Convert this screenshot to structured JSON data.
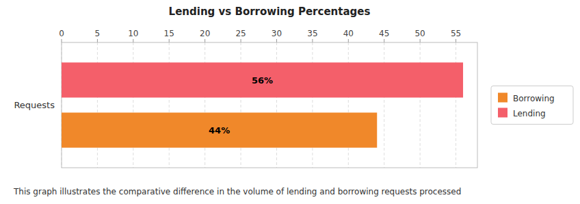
{
  "chart_data": {
    "type": "bar",
    "orientation": "horizontal",
    "title": "Lending vs Borrowing Percentages",
    "subtitle": "This graph illustrates the comparative difference in the volume of lending and borrowing requests processed",
    "categories": [
      "Requests"
    ],
    "series": [
      {
        "name": "Borrowing",
        "color": "#F0882A",
        "values": [
          44
        ],
        "value_labels": [
          "44%"
        ]
      },
      {
        "name": "Lending",
        "color": "#F45F6A",
        "values": [
          56
        ],
        "value_labels": [
          "56%"
        ]
      }
    ],
    "xlim": [
      0,
      58
    ],
    "xticks": [
      0,
      5,
      10,
      15,
      20,
      25,
      30,
      35,
      40,
      45,
      50,
      55
    ],
    "grid": true,
    "legend": "right",
    "data_labels": true
  }
}
